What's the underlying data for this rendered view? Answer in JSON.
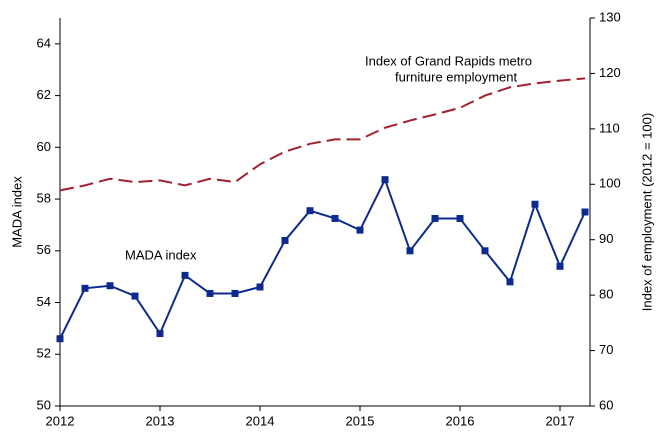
{
  "chart_data": {
    "type": "line",
    "y_label": "MADA index",
    "y2_label": "Index of employment (2012 = 100)",
    "annotations": [
      "Index of Grand Rapids metro",
      "furniture employment",
      "MADA index"
    ],
    "x": [
      2012,
      2012.25,
      2012.5,
      2012.75,
      2013,
      2013.25,
      2013.5,
      2013.75,
      2014,
      2014.25,
      2014.5,
      2014.75,
      2015,
      2015.25,
      2015.5,
      2015.75,
      2016,
      2016.25,
      2016.5,
      2016.75,
      2017,
      2017.25
    ],
    "series": [
      {
        "name": "MADA index",
        "color": "#0d2b8e",
        "marker": "square",
        "values": [
          52.6,
          54.55,
          54.65,
          54.25,
          52.8,
          55.05,
          54.35,
          54.35,
          54.6,
          56.4,
          57.55,
          57.25,
          56.8,
          58.75,
          56.0,
          57.25,
          57.25,
          56.0,
          54.8,
          57.8,
          55.4,
          57.5
        ]
      },
      {
        "name": "Index of Grand Rapids metro furniture employment",
        "color": "#a3202f",
        "dashed": true,
        "axis": "y2",
        "values": [
          98.9,
          99.8,
          101.0,
          100.4,
          100.7,
          99.8,
          101.0,
          100.4,
          103.6,
          105.9,
          107.3,
          108.1,
          108.1,
          110.2,
          111.5,
          112.6,
          113.8,
          116.0,
          117.5,
          118.2,
          118.7,
          119.1
        ]
      }
    ],
    "xlim": [
      2012,
      2017.3
    ],
    "xticks": [
      2012,
      2013,
      2014,
      2015,
      2016,
      2017
    ],
    "ylim": [
      50,
      65
    ],
    "yticks": [
      50,
      52,
      54,
      56,
      58,
      60,
      62,
      64
    ],
    "y2lim": [
      60,
      130
    ],
    "y2ticks": [
      60,
      70,
      80,
      90,
      100,
      110,
      120,
      130
    ]
  }
}
